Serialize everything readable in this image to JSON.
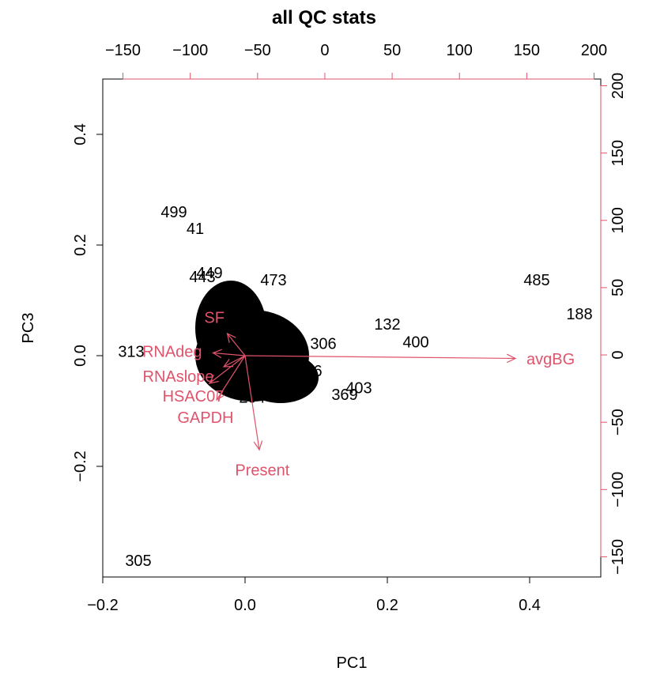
{
  "colors": {
    "observations": "#000000",
    "variables": "#DF536B",
    "box": "#000000"
  },
  "chart_data": {
    "type": "scatter",
    "title": "all QC stats",
    "xlabel": "PC1",
    "ylabel": "PC3",
    "xlim": [
      -0.2,
      0.5
    ],
    "ylim": [
      -0.4,
      0.5
    ],
    "x_ticks": [
      -0.2,
      0.0,
      0.2,
      0.4
    ],
    "x_tick_labels": [
      "−0.2",
      "0.0",
      "0.2",
      "0.4"
    ],
    "y_ticks": [
      -0.2,
      0.0,
      0.2,
      0.4
    ],
    "y_tick_labels": [
      "−0.2",
      "0.0",
      "0.2",
      "0.4"
    ],
    "secondary_x_ticks": [
      -150,
      -100,
      -50,
      0,
      50,
      100,
      150,
      200
    ],
    "secondary_x_tick_labels": [
      "−150",
      "−100",
      "−50",
      "0",
      "50",
      "100",
      "150",
      "200"
    ],
    "secondary_y_ticks": [
      -150,
      -100,
      -50,
      0,
      50,
      100,
      150,
      200
    ],
    "secondary_y_tick_labels": [
      "−150",
      "−100",
      "−50",
      "0",
      "50",
      "100",
      "150",
      "200"
    ],
    "secondary_range": [
      -165,
      205
    ],
    "observations": [
      {
        "label": "499",
        "x": -0.1,
        "y": 0.26
      },
      {
        "label": "41",
        "x": -0.07,
        "y": 0.23
      },
      {
        "label": "449",
        "x": -0.05,
        "y": 0.15
      },
      {
        "label": "443",
        "x": -0.06,
        "y": 0.143
      },
      {
        "label": "473",
        "x": 0.04,
        "y": 0.137
      },
      {
        "label": "485",
        "x": 0.41,
        "y": 0.137
      },
      {
        "label": "188",
        "x": 0.47,
        "y": 0.076
      },
      {
        "label": "132",
        "x": 0.2,
        "y": 0.057
      },
      {
        "label": "400",
        "x": 0.24,
        "y": 0.025
      },
      {
        "label": "306",
        "x": 0.11,
        "y": 0.022
      },
      {
        "label": "313",
        "x": -0.16,
        "y": 0.008
      },
      {
        "label": "246",
        "x": 0.09,
        "y": -0.027
      },
      {
        "label": "403",
        "x": 0.16,
        "y": -0.058
      },
      {
        "label": "369",
        "x": 0.14,
        "y": -0.07
      },
      {
        "label": "204",
        "x": 0.01,
        "y": -0.075
      },
      {
        "label": "305",
        "x": -0.15,
        "y": -0.37
      }
    ],
    "variables": [
      {
        "label": "avgBG",
        "x": 0.38,
        "y": -0.005
      },
      {
        "label": "Present",
        "x": 0.02,
        "y": -0.17
      },
      {
        "label": "GAPDH",
        "x": -0.04,
        "y": -0.08
      },
      {
        "label": "HSAC07",
        "x": -0.05,
        "y": -0.05
      },
      {
        "label": "SF",
        "x": -0.025,
        "y": 0.04
      },
      {
        "label": "RNAslope",
        "x": -0.03,
        "y": -0.02
      },
      {
        "label": "RNAdeg",
        "x": -0.045,
        "y": 0.005
      }
    ]
  }
}
